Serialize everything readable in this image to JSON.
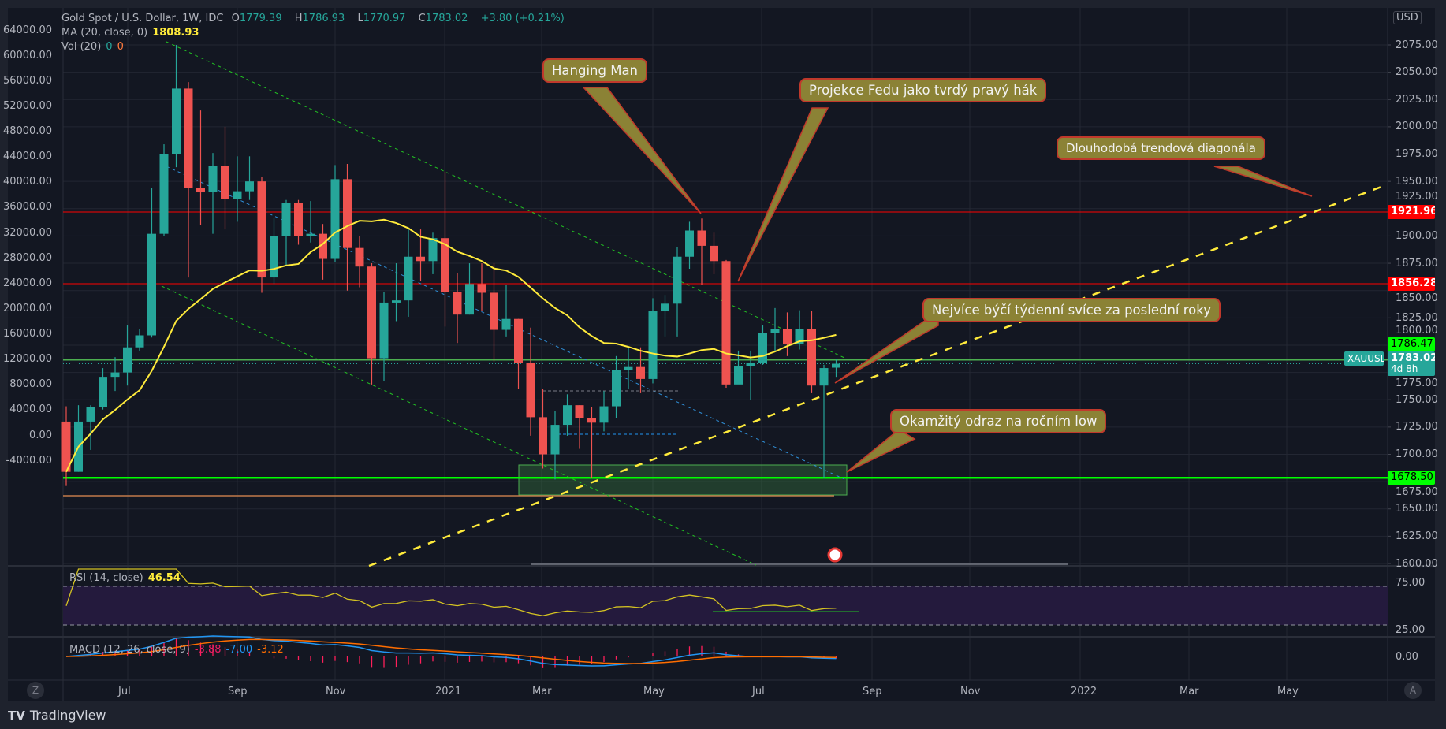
{
  "legend": {
    "symbol": "Gold Spot / U.S. Dollar, 1W, IDC",
    "open_label": "O",
    "open": "1779.39",
    "high_label": "H",
    "high": "1786.93",
    "low_label": "L",
    "low": "1770.97",
    "close_label": "C",
    "close": "1783.02",
    "change": "+3.80 (+0.21%)",
    "ma_label": "MA (20, close, 0)",
    "ma_value": "1808.93",
    "vol_label": "Vol (20)",
    "vol_a": "0",
    "vol_b": "0"
  },
  "rsi": {
    "label": "RSI (14, close)",
    "value": "46.54",
    "ticks": [
      "75.00",
      "25.00"
    ]
  },
  "macd": {
    "label": "MACD (12, 26, close, 9)",
    "hist": "-3.88",
    "macd": "-7.00",
    "signal": "-3.12",
    "tick": "0.00"
  },
  "right_axis": {
    "currency": "USD",
    "ticks": [
      "2075.00",
      "2050.00",
      "2025.00",
      "2000.00",
      "1975.00",
      "1950.00",
      "1925.00",
      "1900.00",
      "1875.00",
      "1850.00",
      "1825.00",
      "1800.00",
      "1775.00",
      "1750.00",
      "1725.00",
      "1700.00",
      "1675.00",
      "1650.00",
      "1625.00",
      "1600.00"
    ],
    "badges": {
      "r1": "1921.96",
      "r2": "1856.28",
      "ma": "1786.47",
      "last": "1783.02",
      "countdown": "4d 8h",
      "symbol": "XAUUSD",
      "support": "1678.50"
    }
  },
  "left_axis": {
    "ticks": [
      "64000.00",
      "60000.00",
      "56000.00",
      "52000.00",
      "48000.00",
      "44000.00",
      "40000.00",
      "36000.00",
      "32000.00",
      "28000.00",
      "24000.00",
      "20000.00",
      "16000.00",
      "12000.00",
      "8000.00",
      "4000.00",
      "0.00",
      "-4000.00"
    ]
  },
  "time_axis": [
    "Jul",
    "Sep",
    "Nov",
    "2021",
    "Mar",
    "May",
    "Jul",
    "Sep",
    "Nov",
    "2022",
    "Mar",
    "May"
  ],
  "callouts": {
    "hanging_man": "Hanging Man",
    "fed": "Projekce Fedu jako tvrdý pravý hák",
    "trend": "Dlouhodobá trendová diagonála",
    "bullish": "Nejvíce býčí týdenní svíce za poslední roky",
    "bounce": "Okamžitý odraz na ročním low"
  },
  "buttons": {
    "zoom": "Z",
    "auto": "A"
  },
  "brand": "TradingView",
  "colors": {
    "up": "#26a69a",
    "down": "#ef5350",
    "ma": "#ffeb3b",
    "callout": "#8b8235",
    "resistance": "#ff0000",
    "support": "#00ff00"
  },
  "chart_data": {
    "type": "candlestick",
    "interval": "1W",
    "ohlc": [
      [
        1730,
        1744,
        1671,
        1684
      ],
      [
        1684,
        1745,
        1684,
        1730
      ],
      [
        1730,
        1745,
        1704,
        1743
      ],
      [
        1743,
        1779,
        1741,
        1771
      ],
      [
        1771,
        1789,
        1758,
        1775
      ],
      [
        1775,
        1818,
        1763,
        1798
      ],
      [
        1798,
        1815,
        1795,
        1809
      ],
      [
        1809,
        1944,
        1807,
        1902
      ],
      [
        1902,
        1984,
        1900,
        1975
      ],
      [
        1975,
        2075,
        1963,
        2035
      ],
      [
        2035,
        2041,
        1862,
        1944
      ],
      [
        1944,
        2015,
        1910,
        1940
      ],
      [
        1940,
        1976,
        1902,
        1964
      ],
      [
        1964,
        2000,
        1906,
        1934
      ],
      [
        1934,
        1973,
        1913,
        1941
      ],
      [
        1941,
        1973,
        1933,
        1950
      ],
      [
        1950,
        1954,
        1848,
        1862
      ],
      [
        1862,
        1917,
        1856,
        1900
      ],
      [
        1900,
        1933,
        1873,
        1930
      ],
      [
        1930,
        1933,
        1892,
        1900
      ],
      [
        1900,
        1932,
        1894,
        1902
      ],
      [
        1902,
        1911,
        1860,
        1879
      ],
      [
        1879,
        1965,
        1876,
        1952
      ],
      [
        1952,
        1966,
        1850,
        1889
      ],
      [
        1889,
        1900,
        1853,
        1872
      ],
      [
        1872,
        1875,
        1764,
        1788
      ],
      [
        1788,
        1849,
        1767,
        1839
      ],
      [
        1839,
        1875,
        1822,
        1841
      ],
      [
        1841,
        1906,
        1826,
        1881
      ],
      [
        1881,
        1906,
        1859,
        1877
      ],
      [
        1877,
        1903,
        1865,
        1898
      ],
      [
        1898,
        1959,
        1817,
        1849
      ],
      [
        1849,
        1866,
        1802,
        1828
      ],
      [
        1828,
        1875,
        1828,
        1856
      ],
      [
        1856,
        1875,
        1831,
        1848
      ],
      [
        1848,
        1875,
        1785,
        1814
      ],
      [
        1814,
        1855,
        1808,
        1824
      ],
      [
        1824,
        1824,
        1760,
        1784
      ],
      [
        1784,
        1816,
        1717,
        1734
      ],
      [
        1734,
        1760,
        1687,
        1700
      ],
      [
        1700,
        1740,
        1677,
        1727
      ],
      [
        1727,
        1755,
        1717,
        1745
      ],
      [
        1745,
        1745,
        1705,
        1733
      ],
      [
        1733,
        1743,
        1678,
        1729
      ],
      [
        1729,
        1758,
        1721,
        1744
      ],
      [
        1744,
        1790,
        1733,
        1777
      ],
      [
        1777,
        1798,
        1760,
        1780
      ],
      [
        1780,
        1798,
        1756,
        1769
      ],
      [
        1769,
        1843,
        1765,
        1831
      ],
      [
        1831,
        1846,
        1808,
        1838
      ],
      [
        1838,
        1890,
        1808,
        1881
      ],
      [
        1881,
        1913,
        1870,
        1905
      ],
      [
        1905,
        1916,
        1855,
        1891
      ],
      [
        1891,
        1903,
        1865,
        1877
      ],
      [
        1877,
        1878,
        1761,
        1764
      ],
      [
        1764,
        1795,
        1767,
        1781
      ],
      [
        1781,
        1795,
        1750,
        1784
      ],
      [
        1784,
        1818,
        1782,
        1811
      ],
      [
        1811,
        1834,
        1794,
        1815
      ],
      [
        1815,
        1830,
        1790,
        1801
      ],
      [
        1801,
        1832,
        1796,
        1815
      ],
      [
        1815,
        1831,
        1756,
        1763
      ],
      [
        1763,
        1782,
        1678,
        1779
      ],
      [
        1779.39,
        1786.93,
        1770.97,
        1783.02
      ]
    ],
    "indicators": [
      "MA 20",
      "RSI 14",
      "MACD 12 26 9"
    ],
    "ylim": [
      1600,
      2100
    ]
  }
}
